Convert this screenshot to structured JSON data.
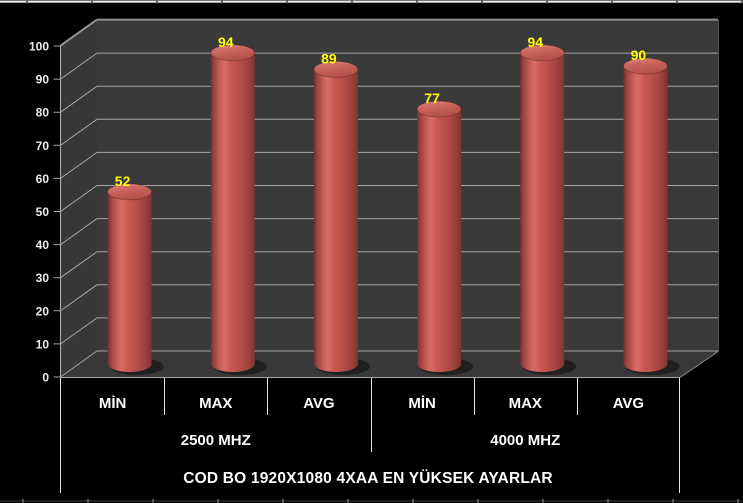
{
  "chart_data": {
    "type": "bar",
    "style": "3d-cylinder",
    "title": "COD BO 1920X1080 4XAA EN YÜKSEK AYARLAR",
    "categories": [
      "MİN",
      "MAX",
      "AVG",
      "MİN",
      "MAX",
      "AVG"
    ],
    "values": [
      52,
      94,
      89,
      77,
      94,
      90
    ],
    "groups": [
      {
        "label": "2500 MHZ",
        "categories": [
          "MİN",
          "MAX",
          "AVG"
        ],
        "values": [
          52,
          94,
          89
        ]
      },
      {
        "label": "4000 MHZ",
        "categories": [
          "MİN",
          "MAX",
          "AVG"
        ],
        "values": [
          77,
          94,
          90
        ]
      }
    ],
    "y_ticks": [
      0,
      10,
      20,
      30,
      40,
      50,
      60,
      70,
      80,
      90,
      100
    ],
    "ylim": [
      0,
      100
    ],
    "grid": true,
    "legend": false,
    "data_labels": true
  },
  "colors": {
    "background": "#000000",
    "wall": "#3a3a3a",
    "floor": "#383838",
    "wall_top_edge": "#6e6e6e",
    "gridline": "#a6a6a6",
    "axis_line": "#b5b5b5",
    "axis_text": "#ededed",
    "category_text": "#ffffff",
    "value_label": "#ffff00",
    "bar_base": "#c0504d",
    "bar_highlight": "#d76e66",
    "bar_dark_edge": "#7e3431",
    "table_line": "#e8e8e8",
    "sheet_edge_light": "#ececec",
    "sheet_edge_dark": "#414141"
  }
}
